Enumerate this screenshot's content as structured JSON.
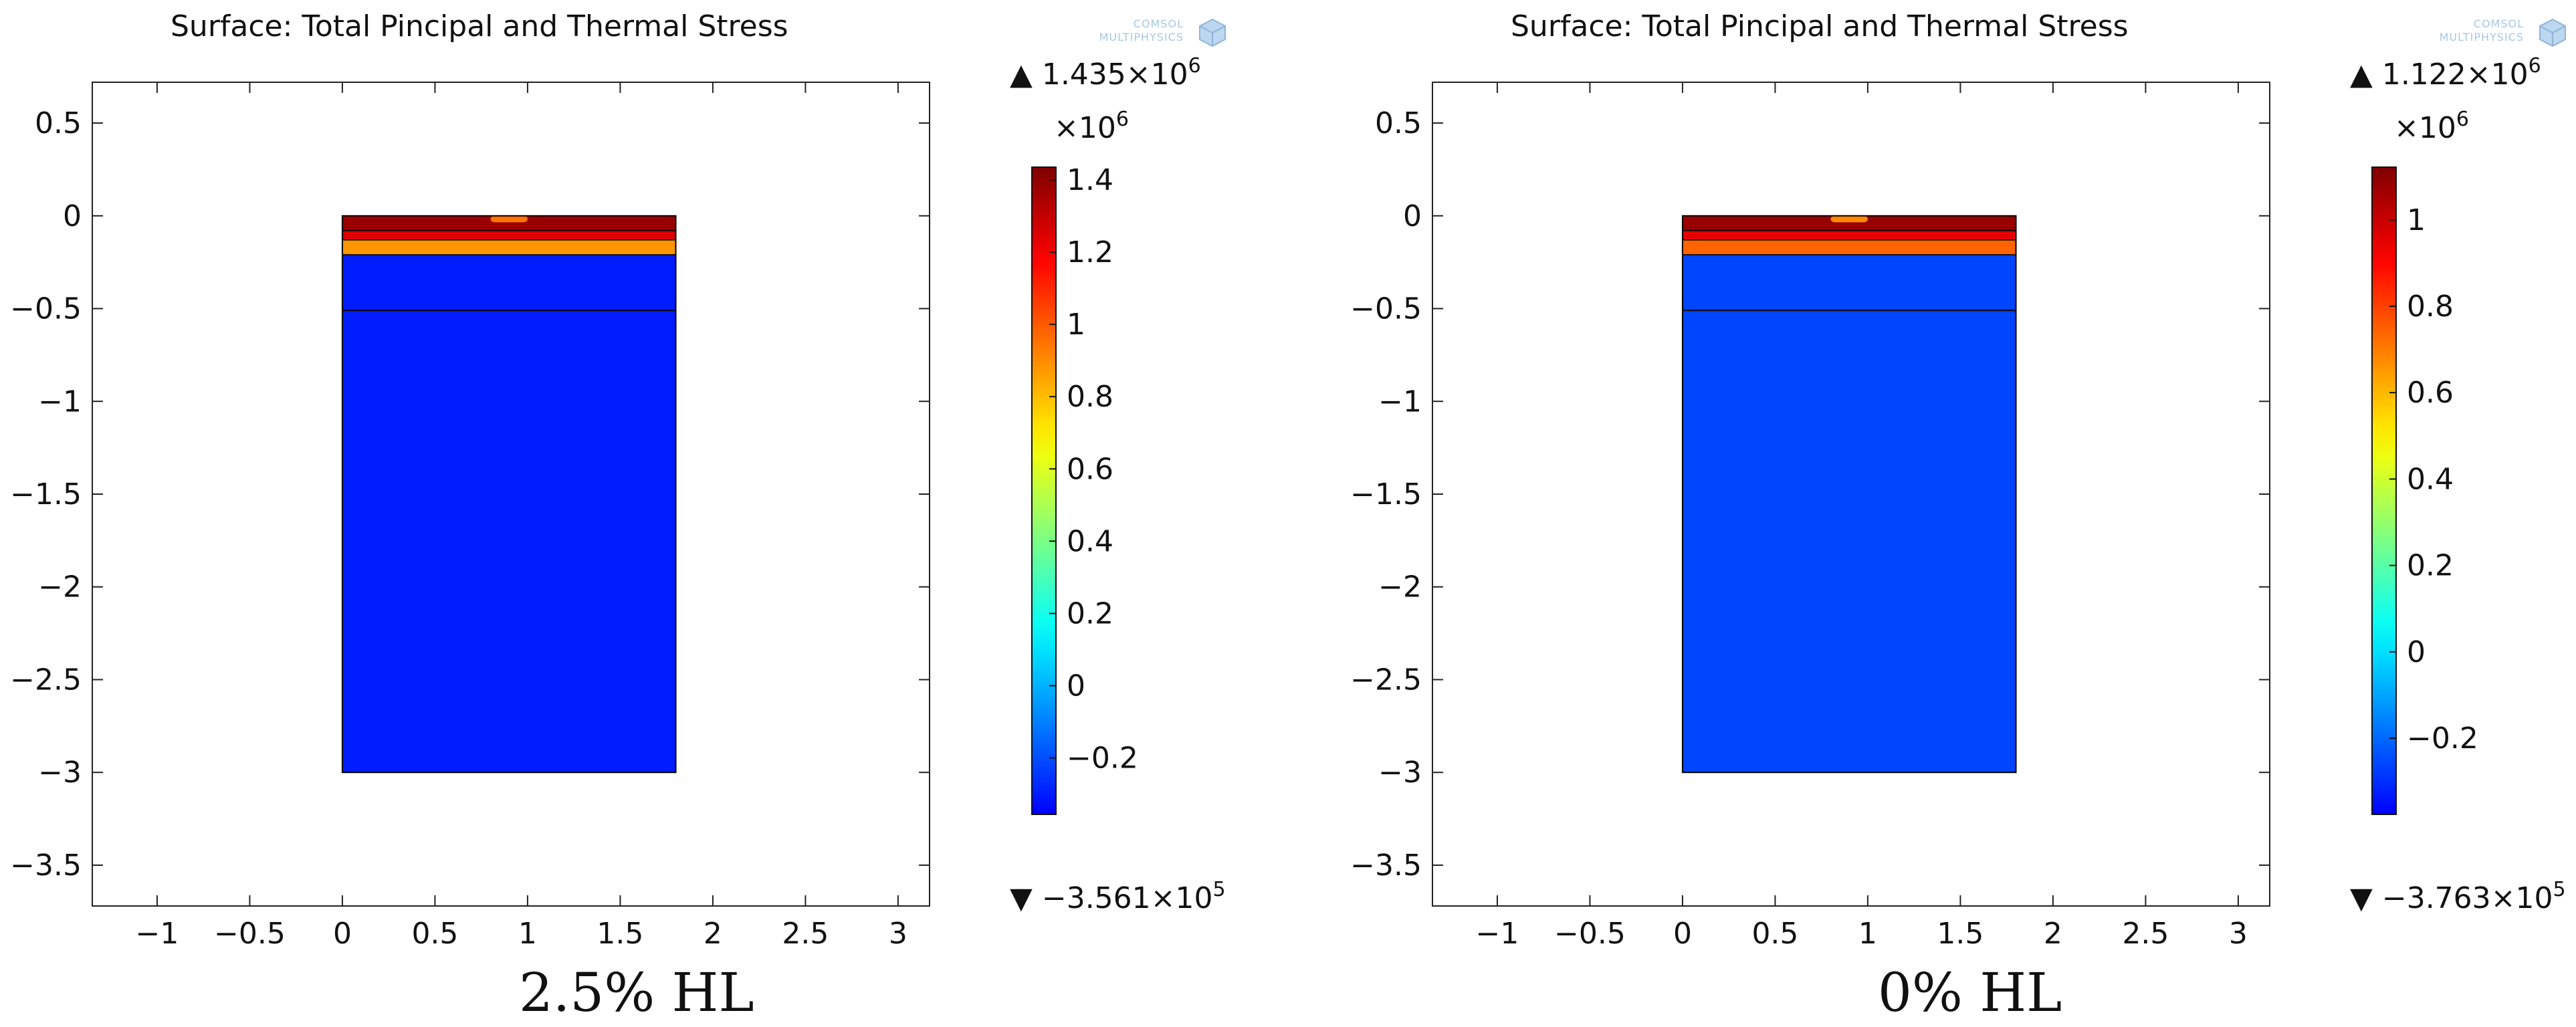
{
  "chart_data": [
    {
      "type": "heatmap",
      "title": "Surface: Total Pincipal and Thermal Stress",
      "caption": "2.5% HL",
      "x_ticks": [
        "−1",
        "−0.5",
        "0",
        "0.5",
        "1",
        "1.5",
        "2",
        "2.5",
        "3"
      ],
      "x_tick_values": [
        -1,
        -0.5,
        0,
        0.5,
        1,
        1.5,
        2,
        2.5,
        3
      ],
      "y_ticks": [
        "0.5",
        "0",
        "−0.5",
        "−1",
        "−1.5",
        "−2",
        "−2.5",
        "−3",
        "−3.5"
      ],
      "y_tick_values": [
        0.5,
        0,
        -0.5,
        -1,
        -1.5,
        -2,
        -2.5,
        -3,
        -3.5
      ],
      "xlim": [
        -1.35,
        3.17
      ],
      "ylim": [
        -3.72,
        0.72
      ],
      "domain": {
        "x": [
          0,
          1.8
        ],
        "y": [
          -3,
          0
        ]
      },
      "layers": [
        {
          "y": [
            -0.08,
            0
          ],
          "level": 1.38
        },
        {
          "y": [
            -0.13,
            -0.08
          ],
          "level": 1.25
        },
        {
          "y": [
            -0.21,
            -0.13
          ],
          "level": 0.88
        },
        {
          "y": [
            -3,
            -0.21
          ],
          "level": -0.3
        }
      ],
      "hotspot": {
        "x": [
          0.8,
          1.0
        ],
        "y": [
          -0.035,
          0
        ],
        "level": 0.95
      },
      "interface_line_y": -0.51,
      "colorbar": {
        "max_text": "1.435×10",
        "max_exp": "6",
        "min_text": "−3.561×10",
        "min_exp": "5",
        "multiplier_text": "×10",
        "multiplier_exp": "6",
        "range": [
          -0.3561,
          1.435
        ],
        "ticks": [
          "1.4",
          "1.2",
          "1",
          "0.8",
          "0.6",
          "0.4",
          "0.2",
          "0",
          "−0.2"
        ],
        "tick_values": [
          1.4,
          1.2,
          1.0,
          0.8,
          0.6,
          0.4,
          0.2,
          0,
          -0.2
        ]
      },
      "logo_text": [
        "COMSOL",
        "MULTIPHYSICS"
      ]
    },
    {
      "type": "heatmap",
      "title": "Surface: Total Pincipal and Thermal Stress",
      "caption": "0% HL",
      "x_ticks": [
        "−1",
        "−0.5",
        "0",
        "0.5",
        "1",
        "1.5",
        "2",
        "2.5",
        "3"
      ],
      "x_tick_values": [
        -1,
        -0.5,
        0,
        0.5,
        1,
        1.5,
        2,
        2.5,
        3
      ],
      "y_ticks": [
        "0.5",
        "0",
        "−0.5",
        "−1",
        "−1.5",
        "−2",
        "−2.5",
        "−3",
        "−3.5"
      ],
      "y_tick_values": [
        0.5,
        0,
        -0.5,
        -1,
        -1.5,
        -2,
        -2.5,
        -3,
        -3.5
      ],
      "xlim": [
        -1.35,
        3.17
      ],
      "ylim": [
        -3.72,
        0.72
      ],
      "domain": {
        "x": [
          0,
          1.8
        ],
        "y": [
          -3,
          0
        ]
      },
      "layers": [
        {
          "y": [
            -0.08,
            0
          ],
          "level": 1.08
        },
        {
          "y": [
            -0.13,
            -0.08
          ],
          "level": 0.95
        },
        {
          "y": [
            -0.21,
            -0.13
          ],
          "level": 0.74
        },
        {
          "y": [
            -3,
            -0.21
          ],
          "level": -0.26
        }
      ],
      "hotspot": {
        "x": [
          0.8,
          1.0
        ],
        "y": [
          -0.035,
          0
        ],
        "level": 0.68
      },
      "interface_line_y": -0.51,
      "colorbar": {
        "max_text": "1.122×10",
        "max_exp": "6",
        "min_text": "−3.763×10",
        "min_exp": "5",
        "multiplier_text": "×10",
        "multiplier_exp": "6",
        "range": [
          -0.3763,
          1.122
        ],
        "ticks": [
          "1",
          "0.8",
          "0.6",
          "0.4",
          "0.2",
          "0",
          "−0.2"
        ],
        "tick_values": [
          1.0,
          0.8,
          0.6,
          0.4,
          0.2,
          0,
          -0.2
        ]
      },
      "logo_text": [
        "COMSOL",
        "MULTIPHYSICS"
      ]
    }
  ]
}
